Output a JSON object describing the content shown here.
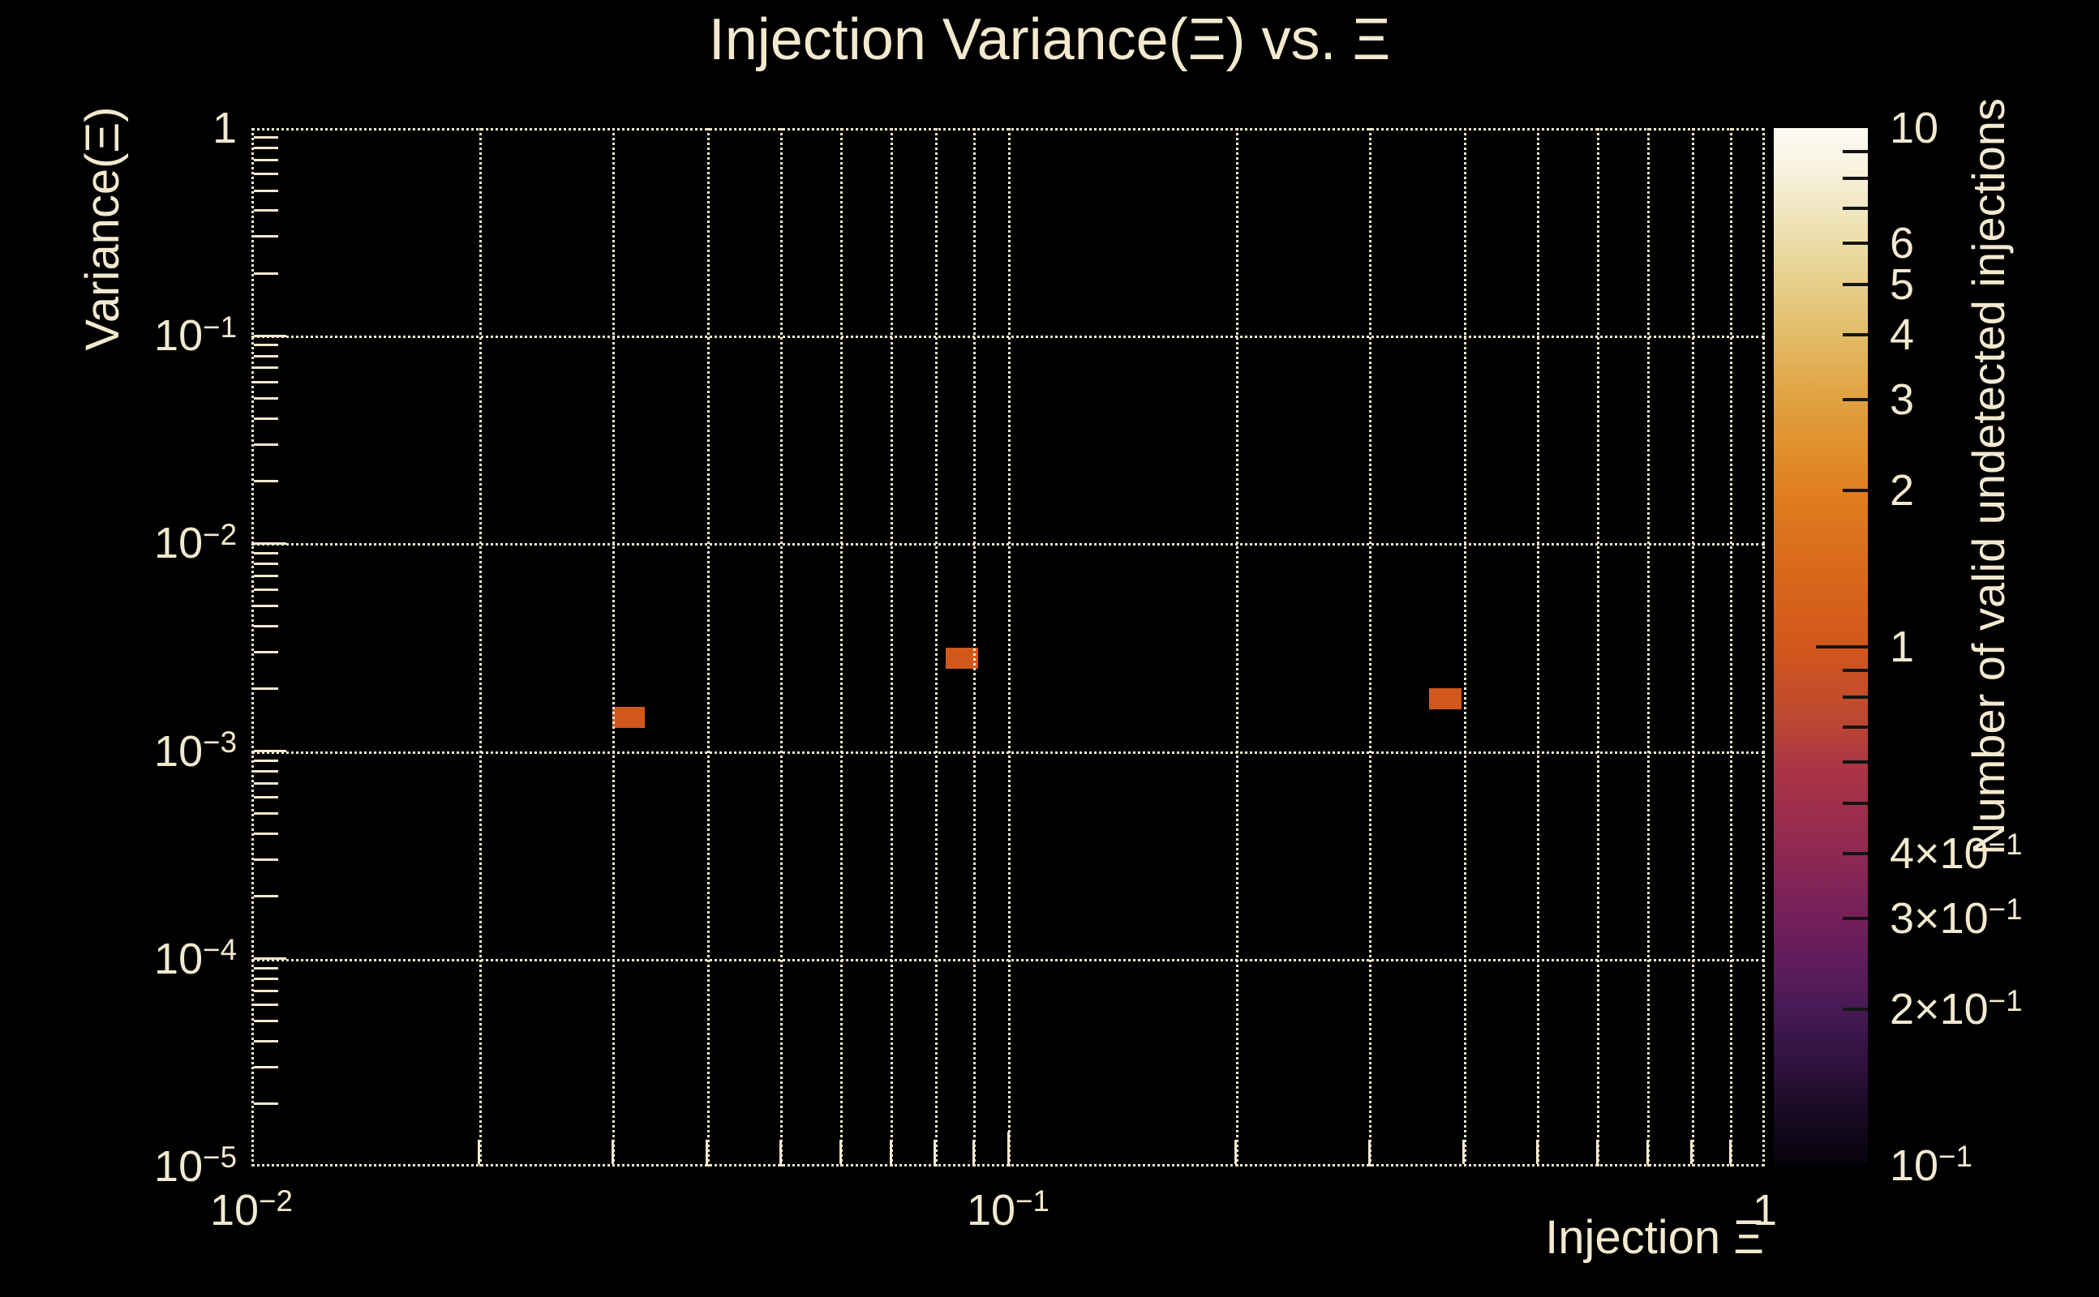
{
  "title": "Injection Variance(Ξ) vs. Ξ",
  "colors": {
    "background": "#000000",
    "foreground": "#f3e9cf",
    "marker": "#d2571b",
    "palette_tick": "#141414"
  },
  "axes": {
    "x": {
      "title": "Injection Ξ",
      "scale": "log",
      "min_exp": -2,
      "max_exp": 0,
      "decade_labels": [
        {
          "v": 0.01,
          "b": "10",
          "e": "−2"
        },
        {
          "v": 0.1,
          "b": "10",
          "e": "−1"
        },
        {
          "v": 1,
          "b": "1",
          "e": null
        }
      ]
    },
    "y": {
      "title": "Variance(Ξ)",
      "scale": "log",
      "min_exp": -5,
      "max_exp": 0,
      "decade_labels": [
        {
          "v": 1,
          "b": "1",
          "e": null
        },
        {
          "v": 0.1,
          "b": "10",
          "e": "−1"
        },
        {
          "v": 0.01,
          "b": "10",
          "e": "−2"
        },
        {
          "v": 0.001,
          "b": "10",
          "e": "−3"
        },
        {
          "v": 0.0001,
          "b": "10",
          "e": "−4"
        },
        {
          "v": 1e-05,
          "b": "10",
          "e": "−5"
        }
      ]
    }
  },
  "colorbar": {
    "title": "Number of valid undetected injections",
    "scale": "log",
    "min": 0.1,
    "max": 10,
    "labeled_ticks": [
      {
        "v": 10,
        "b": "10",
        "e": null
      },
      {
        "v": 6,
        "b": "6",
        "e": null
      },
      {
        "v": 5,
        "b": "5",
        "e": null
      },
      {
        "v": 4,
        "b": "4",
        "e": null
      },
      {
        "v": 3,
        "b": "3",
        "e": null
      },
      {
        "v": 2,
        "b": "2",
        "e": null
      },
      {
        "v": 1,
        "b": "1",
        "e": null
      },
      {
        "v": 0.4,
        "b": "4×10",
        "e": "−1"
      },
      {
        "v": 0.3,
        "b": "3×10",
        "e": "−1"
      },
      {
        "v": 0.2,
        "b": "2×10",
        "e": "−1"
      },
      {
        "v": 0.1,
        "b": "10",
        "e": "−1"
      }
    ],
    "tick_marks": {
      "major_values": [
        1
      ],
      "minor_decades": [
        1,
        0.1
      ]
    },
    "gradient": [
      [
        0,
        "#fdfbf4"
      ],
      [
        4,
        "#f8f2de"
      ],
      [
        8,
        "#f0e6c0"
      ],
      [
        11.1,
        "#ebdca6"
      ],
      [
        15,
        "#e6cf8b"
      ],
      [
        19.9,
        "#e3bc69"
      ],
      [
        26.1,
        "#e0a140"
      ],
      [
        31,
        "#e18f2c"
      ],
      [
        34.9,
        "#e07f20"
      ],
      [
        42,
        "#d96a1b"
      ],
      [
        50,
        "#d2571b"
      ],
      [
        56,
        "#c04a2e"
      ],
      [
        62,
        "#aa3445"
      ],
      [
        69.9,
        "#8f2852"
      ],
      [
        76.1,
        "#741f5a"
      ],
      [
        81,
        "#5d1b5b"
      ],
      [
        84.9,
        "#481a57"
      ],
      [
        90,
        "#2f123f"
      ],
      [
        95,
        "#180a22"
      ],
      [
        100,
        "#06030c"
      ]
    ]
  },
  "chart_data": {
    "type": "heatmap",
    "title": "Injection Variance(Ξ) vs. Ξ",
    "xlabel": "Injection Ξ",
    "ylabel": "Variance(Ξ)",
    "zlabel": "Number of valid undetected injections",
    "xscale": "log",
    "yscale": "log",
    "zscale": "log",
    "xlim": [
      0.01,
      1
    ],
    "ylim": [
      1e-05,
      1
    ],
    "zlim": [
      0.1,
      10
    ],
    "grid": true,
    "points": [
      {
        "x": 0.0315,
        "y": 0.00145,
        "count": 1
      },
      {
        "x": 0.0868,
        "y": 0.0028,
        "count": 1
      },
      {
        "x": 0.378,
        "y": 0.00178,
        "count": 1
      }
    ]
  }
}
